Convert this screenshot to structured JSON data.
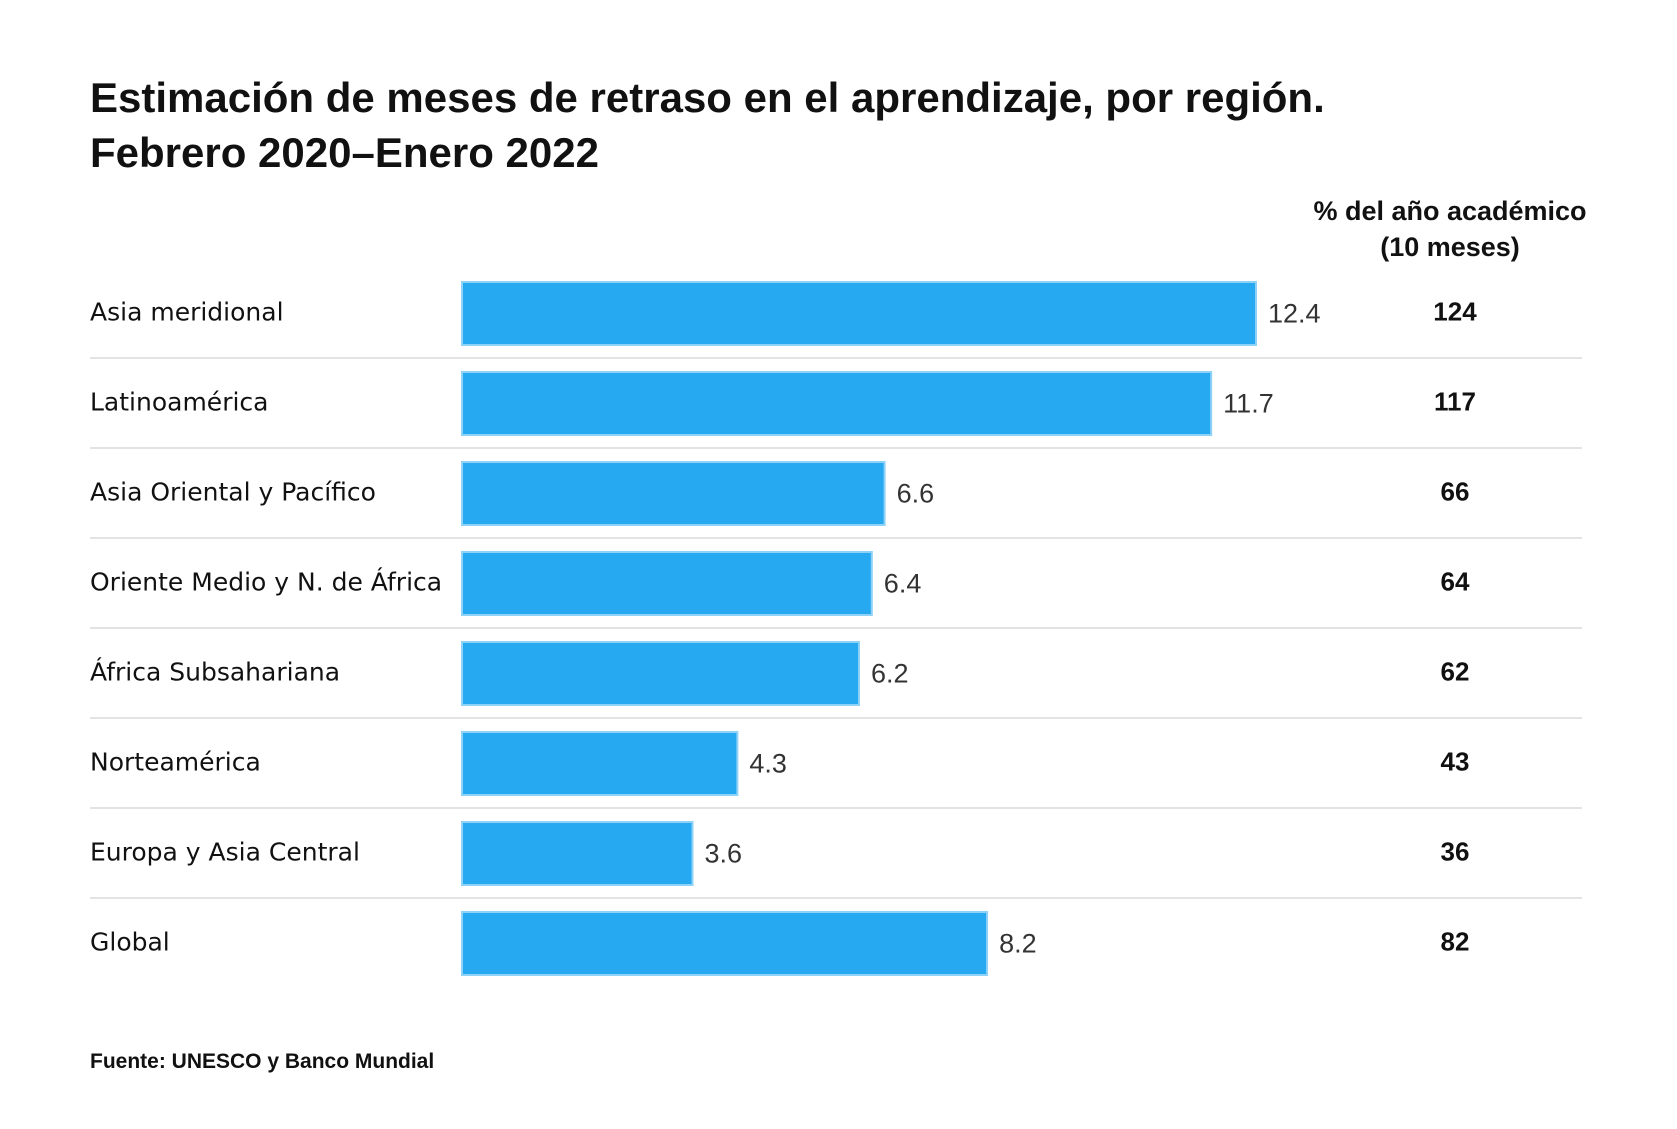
{
  "title_line1": "Estimación de meses de retraso en el aprendizaje, por región.",
  "title_line2": "Febrero 2020–Enero 2022",
  "column_header_line1": "% del año académico",
  "column_header_line2": "(10 meses)",
  "source": "Fuente: UNESCO y Banco Mundial",
  "colors": {
    "bar": "#27a9f1",
    "bar_edge": "#8fd2f7",
    "separator": "#e3e3e3"
  },
  "chart_data": {
    "type": "bar",
    "orientation": "horizontal",
    "categories": [
      "Asia meridional",
      "Latinoamérica",
      "Asia Oriental y Pacífico",
      "Oriente Medio y N. de África",
      "África Subsahariana",
      "Norteamérica",
      "Europa y Asia Central",
      "Global"
    ],
    "values": [
      12.4,
      11.7,
      6.6,
      6.4,
      6.2,
      4.3,
      3.6,
      8.2
    ],
    "value_labels": [
      "12.4",
      "11.7",
      "6.6",
      "6.4",
      "6.2",
      "4.3",
      "3.6",
      "8.2"
    ],
    "percent_of_year": [
      "124",
      "117",
      "66",
      "64",
      "62",
      "43",
      "36",
      "82"
    ],
    "xlim": [
      0,
      12.4
    ],
    "grid": false,
    "legend": "none"
  }
}
